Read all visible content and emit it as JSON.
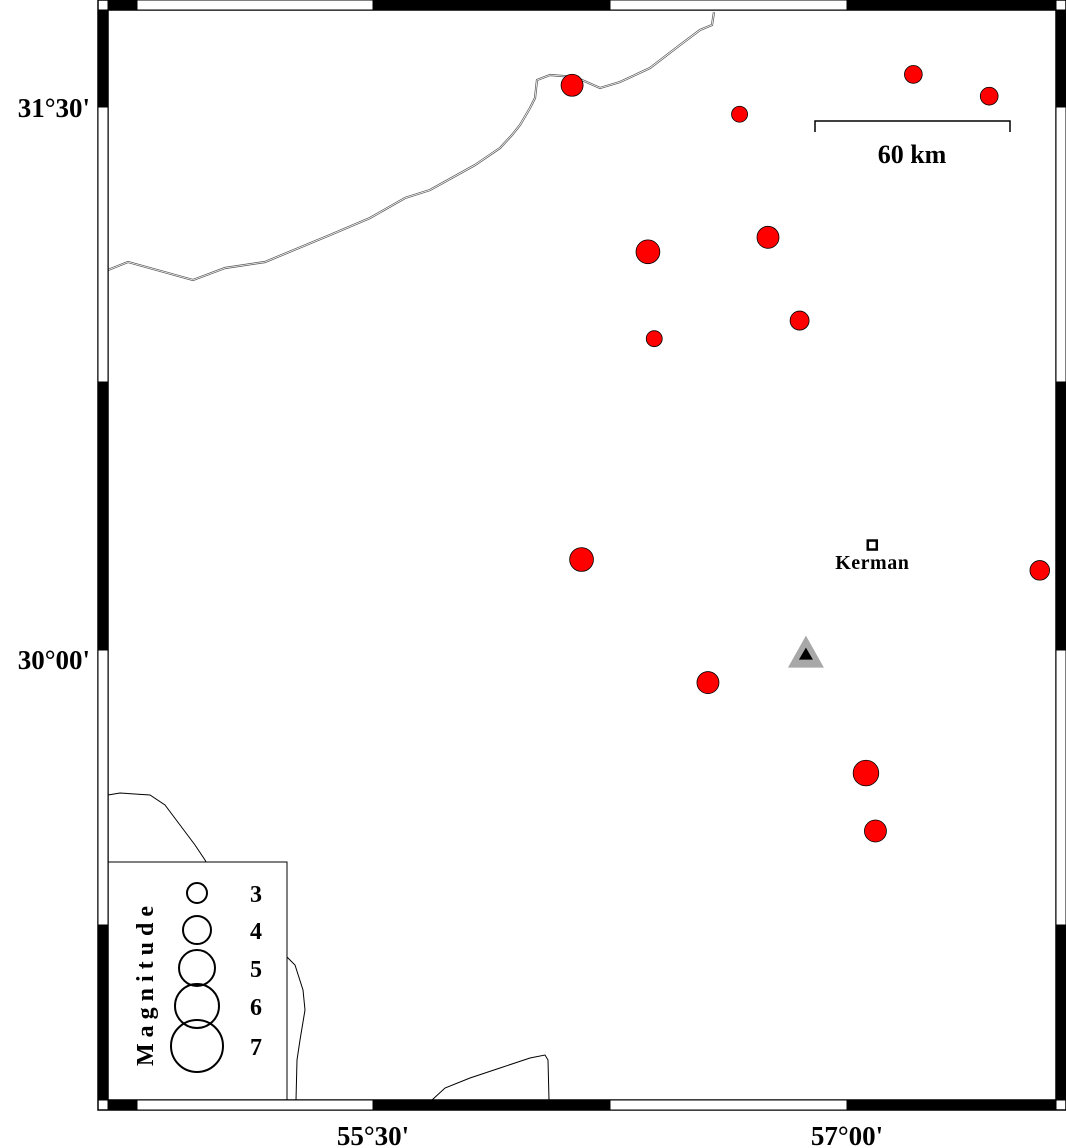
{
  "map": {
    "lat_labels": [
      "31°30'",
      "30°00'"
    ],
    "lon_labels": [
      "55°30'",
      "57°00'"
    ],
    "scale_bar": {
      "label": "60 km",
      "km": 60
    },
    "city": {
      "name": "Kerman",
      "lon": 57.08,
      "lat": 30.29
    },
    "station": {
      "lon": 56.87,
      "lat": 29.99,
      "color": "#a8a8a8"
    },
    "event_color": "#ff0000",
    "events": [
      {
        "lon": 56.13,
        "lat": 31.56,
        "mag": 5.0
      },
      {
        "lon": 56.66,
        "lat": 31.48,
        "mag": 4.0
      },
      {
        "lon": 57.21,
        "lat": 31.59,
        "mag": 4.3
      },
      {
        "lon": 57.45,
        "lat": 31.53,
        "mag": 4.3
      },
      {
        "lon": 56.37,
        "lat": 31.1,
        "mag": 5.3
      },
      {
        "lon": 56.75,
        "lat": 31.14,
        "mag": 5.0
      },
      {
        "lon": 56.39,
        "lat": 30.86,
        "mag": 4.0
      },
      {
        "lon": 56.85,
        "lat": 30.91,
        "mag": 4.5
      },
      {
        "lon": 56.16,
        "lat": 30.25,
        "mag": 5.3
      },
      {
        "lon": 57.61,
        "lat": 30.22,
        "mag": 4.6
      },
      {
        "lon": 56.56,
        "lat": 29.91,
        "mag": 5.0
      },
      {
        "lon": 57.06,
        "lat": 29.66,
        "mag": 5.6
      },
      {
        "lon": 57.09,
        "lat": 29.5,
        "mag": 5.0
      }
    ],
    "legend": {
      "title": "Magnitude",
      "items": [
        "3",
        "4",
        "5",
        "6",
        "7"
      ]
    }
  }
}
